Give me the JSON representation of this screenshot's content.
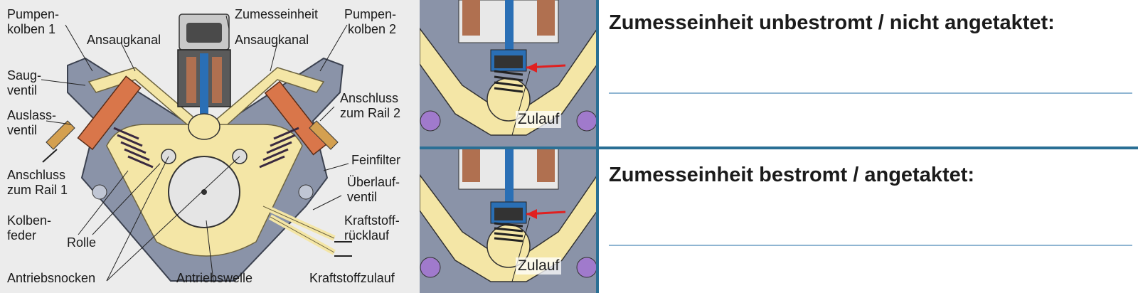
{
  "main_diagram": {
    "labels": {
      "pumpenkolben_1": [
        "Pumpen-",
        "kolben 1"
      ],
      "ansaugkanal_left": "Ansaugkanal",
      "zumesseinheit": "Zumesseinheit",
      "ansaugkanal_right": "Ansaugkanal",
      "pumpenkolben_2": [
        "Pumpen-",
        "kolben 2"
      ],
      "saugventil": [
        "Saug-",
        "ventil"
      ],
      "auslassventil": [
        "Auslass-",
        "ventil"
      ],
      "anschluss_rail_1": [
        "Anschluss",
        "zum Rail 1"
      ],
      "anschluss_rail_2": [
        "Anschluss",
        "zum Rail 2"
      ],
      "feinfilter": "Feinfilter",
      "ueberlaufventil": [
        "Überlauf-",
        "ventil"
      ],
      "kolbenfeder": [
        "Kolben-",
        "feder"
      ],
      "rolle": "Rolle",
      "kraftstoffruecklauf": [
        "Kraftstoff-",
        "rücklauf"
      ],
      "antriebsnocken": "Antriebsnocken",
      "antriebswelle": "Antriebswelle",
      "kraftstoffzulauf": "Kraftstoffzulauf"
    }
  },
  "details": {
    "top": {
      "zulauf_label": "Zulauf"
    },
    "bottom": {
      "zulauf_label": "Zulauf"
    }
  },
  "states": {
    "unpowered": {
      "title": "Zumesseinheit unbestromt / nicht angetaktet:",
      "answer": ""
    },
    "powered": {
      "title": "Zumesseinheit bestromt / angetaktet:",
      "answer": ""
    }
  },
  "colors": {
    "housing": "#8a93a8",
    "fuel": "#f4e6a6",
    "piston": "#d9764a",
    "accent_blue": "#2a6f95",
    "arrow_red": "#e02020",
    "answer_line": "#8fb5d2"
  }
}
